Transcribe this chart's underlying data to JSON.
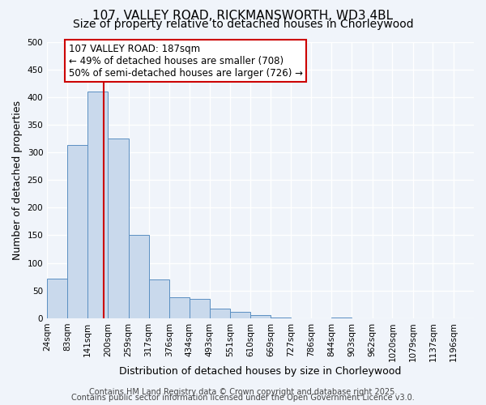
{
  "title": "107, VALLEY ROAD, RICKMANSWORTH, WD3 4BL",
  "subtitle": "Size of property relative to detached houses in Chorleywood",
  "xlabel": "Distribution of detached houses by size in Chorleywood",
  "ylabel": "Number of detached properties",
  "bar_values": [
    72,
    313,
    410,
    325,
    150,
    70,
    38,
    35,
    18,
    12,
    6,
    1,
    0,
    0,
    1,
    0,
    0,
    0,
    0,
    0
  ],
  "bin_labels": [
    "24sqm",
    "83sqm",
    "141sqm",
    "200sqm",
    "259sqm",
    "317sqm",
    "376sqm",
    "434sqm",
    "493sqm",
    "551sqm",
    "610sqm",
    "669sqm",
    "727sqm",
    "786sqm",
    "844sqm",
    "903sqm",
    "962sqm",
    "1020sqm",
    "1079sqm",
    "1137sqm",
    "1196sqm"
  ],
  "bin_left_edges": [
    24,
    83,
    141,
    200,
    259,
    317,
    376,
    434,
    493,
    551,
    610,
    669,
    727,
    786,
    844,
    903,
    962,
    1020,
    1079,
    1137,
    1196
  ],
  "bar_color": "#c9d9ec",
  "bar_edge_color": "#5a8fc2",
  "vline_x": 187,
  "vline_color": "#cc0000",
  "annotation_line1": "107 VALLEY ROAD: 187sqm",
  "annotation_line2": "← 49% of detached houses are smaller (708)",
  "annotation_line3": "50% of semi-detached houses are larger (726) →",
  "annotation_box_color": "#ffffff",
  "annotation_box_edge_color": "#cc0000",
  "ylim": [
    0,
    500
  ],
  "yticks": [
    0,
    50,
    100,
    150,
    200,
    250,
    300,
    350,
    400,
    450,
    500
  ],
  "background_color": "#f0f4fa",
  "grid_color": "#ffffff",
  "footer_line1": "Contains HM Land Registry data © Crown copyright and database right 2025.",
  "footer_line2": "Contains public sector information licensed under the Open Government Licence v3.0.",
  "title_fontsize": 11,
  "subtitle_fontsize": 10,
  "axis_label_fontsize": 9,
  "tick_fontsize": 7.5,
  "annotation_fontsize": 8.5,
  "footer_fontsize": 7
}
